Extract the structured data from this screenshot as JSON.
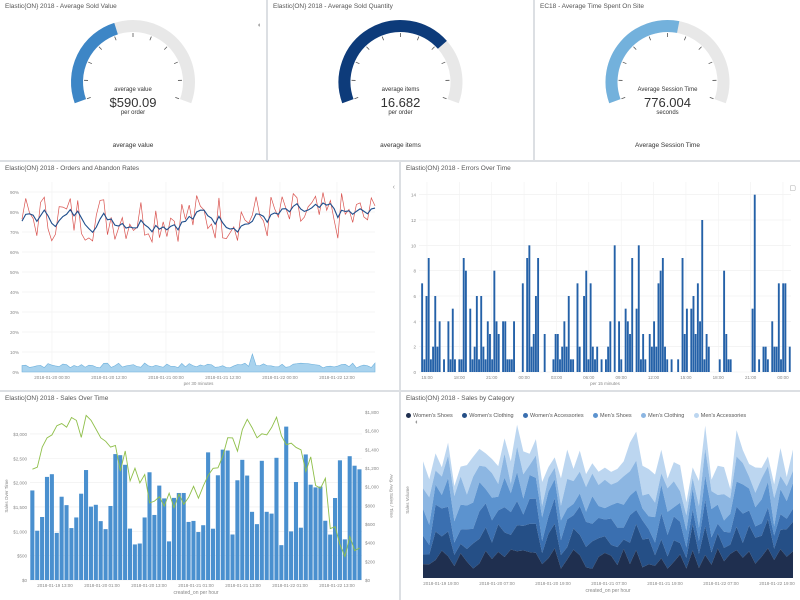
{
  "gauges": [
    {
      "title": "Elastic{ON} 2018 - Average Sold Value",
      "caption": "average value",
      "value": "$590.09",
      "sub": "per order",
      "footer": "average value",
      "fraction": 0.42,
      "color": "#3d86c6"
    },
    {
      "title": "Elastic{ON} 2018 - Average Sold Quantity",
      "caption": "average items",
      "value": "16.682",
      "sub": "per order",
      "footer": "average items",
      "fraction": 0.72,
      "color": "#0d3b7a"
    },
    {
      "title": "EC18 - Average Time Spent On Site",
      "caption": "Average Session Time",
      "value": "776.004",
      "sub": "seconds",
      "footer": "Average Session Time",
      "fraction": 0.55,
      "color": "#73b1dc"
    }
  ],
  "orders": {
    "title": "Elastic{ON} 2018 - Orders and Abandon Rates",
    "y_ticks": [
      "0%",
      "10%",
      "20%",
      "30%",
      "40%",
      "50%",
      "60%",
      "70%",
      "80%",
      "90%"
    ],
    "x_ticks": [
      "2018-01-20 00:00",
      "2018-01-20 12:00",
      "2018-01-21 00:00",
      "2018-01-21 12:00",
      "2018-01-22 00:00",
      "2018-01-22 12:00"
    ],
    "x_label": "per 30 minutes"
  },
  "errors": {
    "title": "Elastic{ON} 2018 - Errors Over Time",
    "y_ticks": [
      "0",
      "2",
      "4",
      "6",
      "8",
      "10",
      "12",
      "14"
    ],
    "x_ticks": [
      "15:00",
      "18:00",
      "21:00",
      "00:00",
      "03:00",
      "06:00",
      "09:00",
      "12:00",
      "15:00",
      "18:00",
      "21:00",
      "00:00"
    ],
    "x_label": "per 15 minutes"
  },
  "sales": {
    "title": "Elastic{ON} 2018 - Sales Over Time",
    "y_ticks": [
      "$0",
      "$500",
      "$1,000",
      "$1,500",
      "$2,000",
      "$2,500",
      "$3,000"
    ],
    "y2_ticks": [
      "$0",
      "$200",
      "$400",
      "$600",
      "$800",
      "$1,000",
      "$1,200",
      "$1,400",
      "$1,600",
      "$1,800"
    ],
    "x_ticks": [
      "2018-01-19 13:00",
      "2018-01-20 01:00",
      "2018-01-20 13:00",
      "2018-01-21 01:00",
      "2018-01-21 13:00",
      "2018-01-22 01:00",
      "2018-01-22 13:00"
    ],
    "y_label": "Sales Over Time",
    "y2_label": "Avg. Avg Sales / Time",
    "x_label": "created_on per hour"
  },
  "category": {
    "title": "Elastic{ON} 2018 - Sales by Category",
    "legend": [
      {
        "label": "Women's Shoes",
        "color": "#1f2f4f"
      },
      {
        "label": "Women's Clothing",
        "color": "#254f86"
      },
      {
        "label": "Women's Accessories",
        "color": "#3a6fb0"
      },
      {
        "label": "Men's Shoes",
        "color": "#5c93cf"
      },
      {
        "label": "Men's Clothing",
        "color": "#8cb6e2"
      },
      {
        "label": "Men's Accessories",
        "color": "#bcd6f0"
      }
    ],
    "y_label": "Sales Volume",
    "x_ticks": [
      "2018-01-19 19:00",
      "2018-01-20 07:00",
      "2018-01-20 19:00",
      "2018-01-21 07:00",
      "2018-01-21 19:00",
      "2018-01-22 07:00",
      "2018-01-22 19:00"
    ],
    "x_label": "created_on per hour"
  }
}
